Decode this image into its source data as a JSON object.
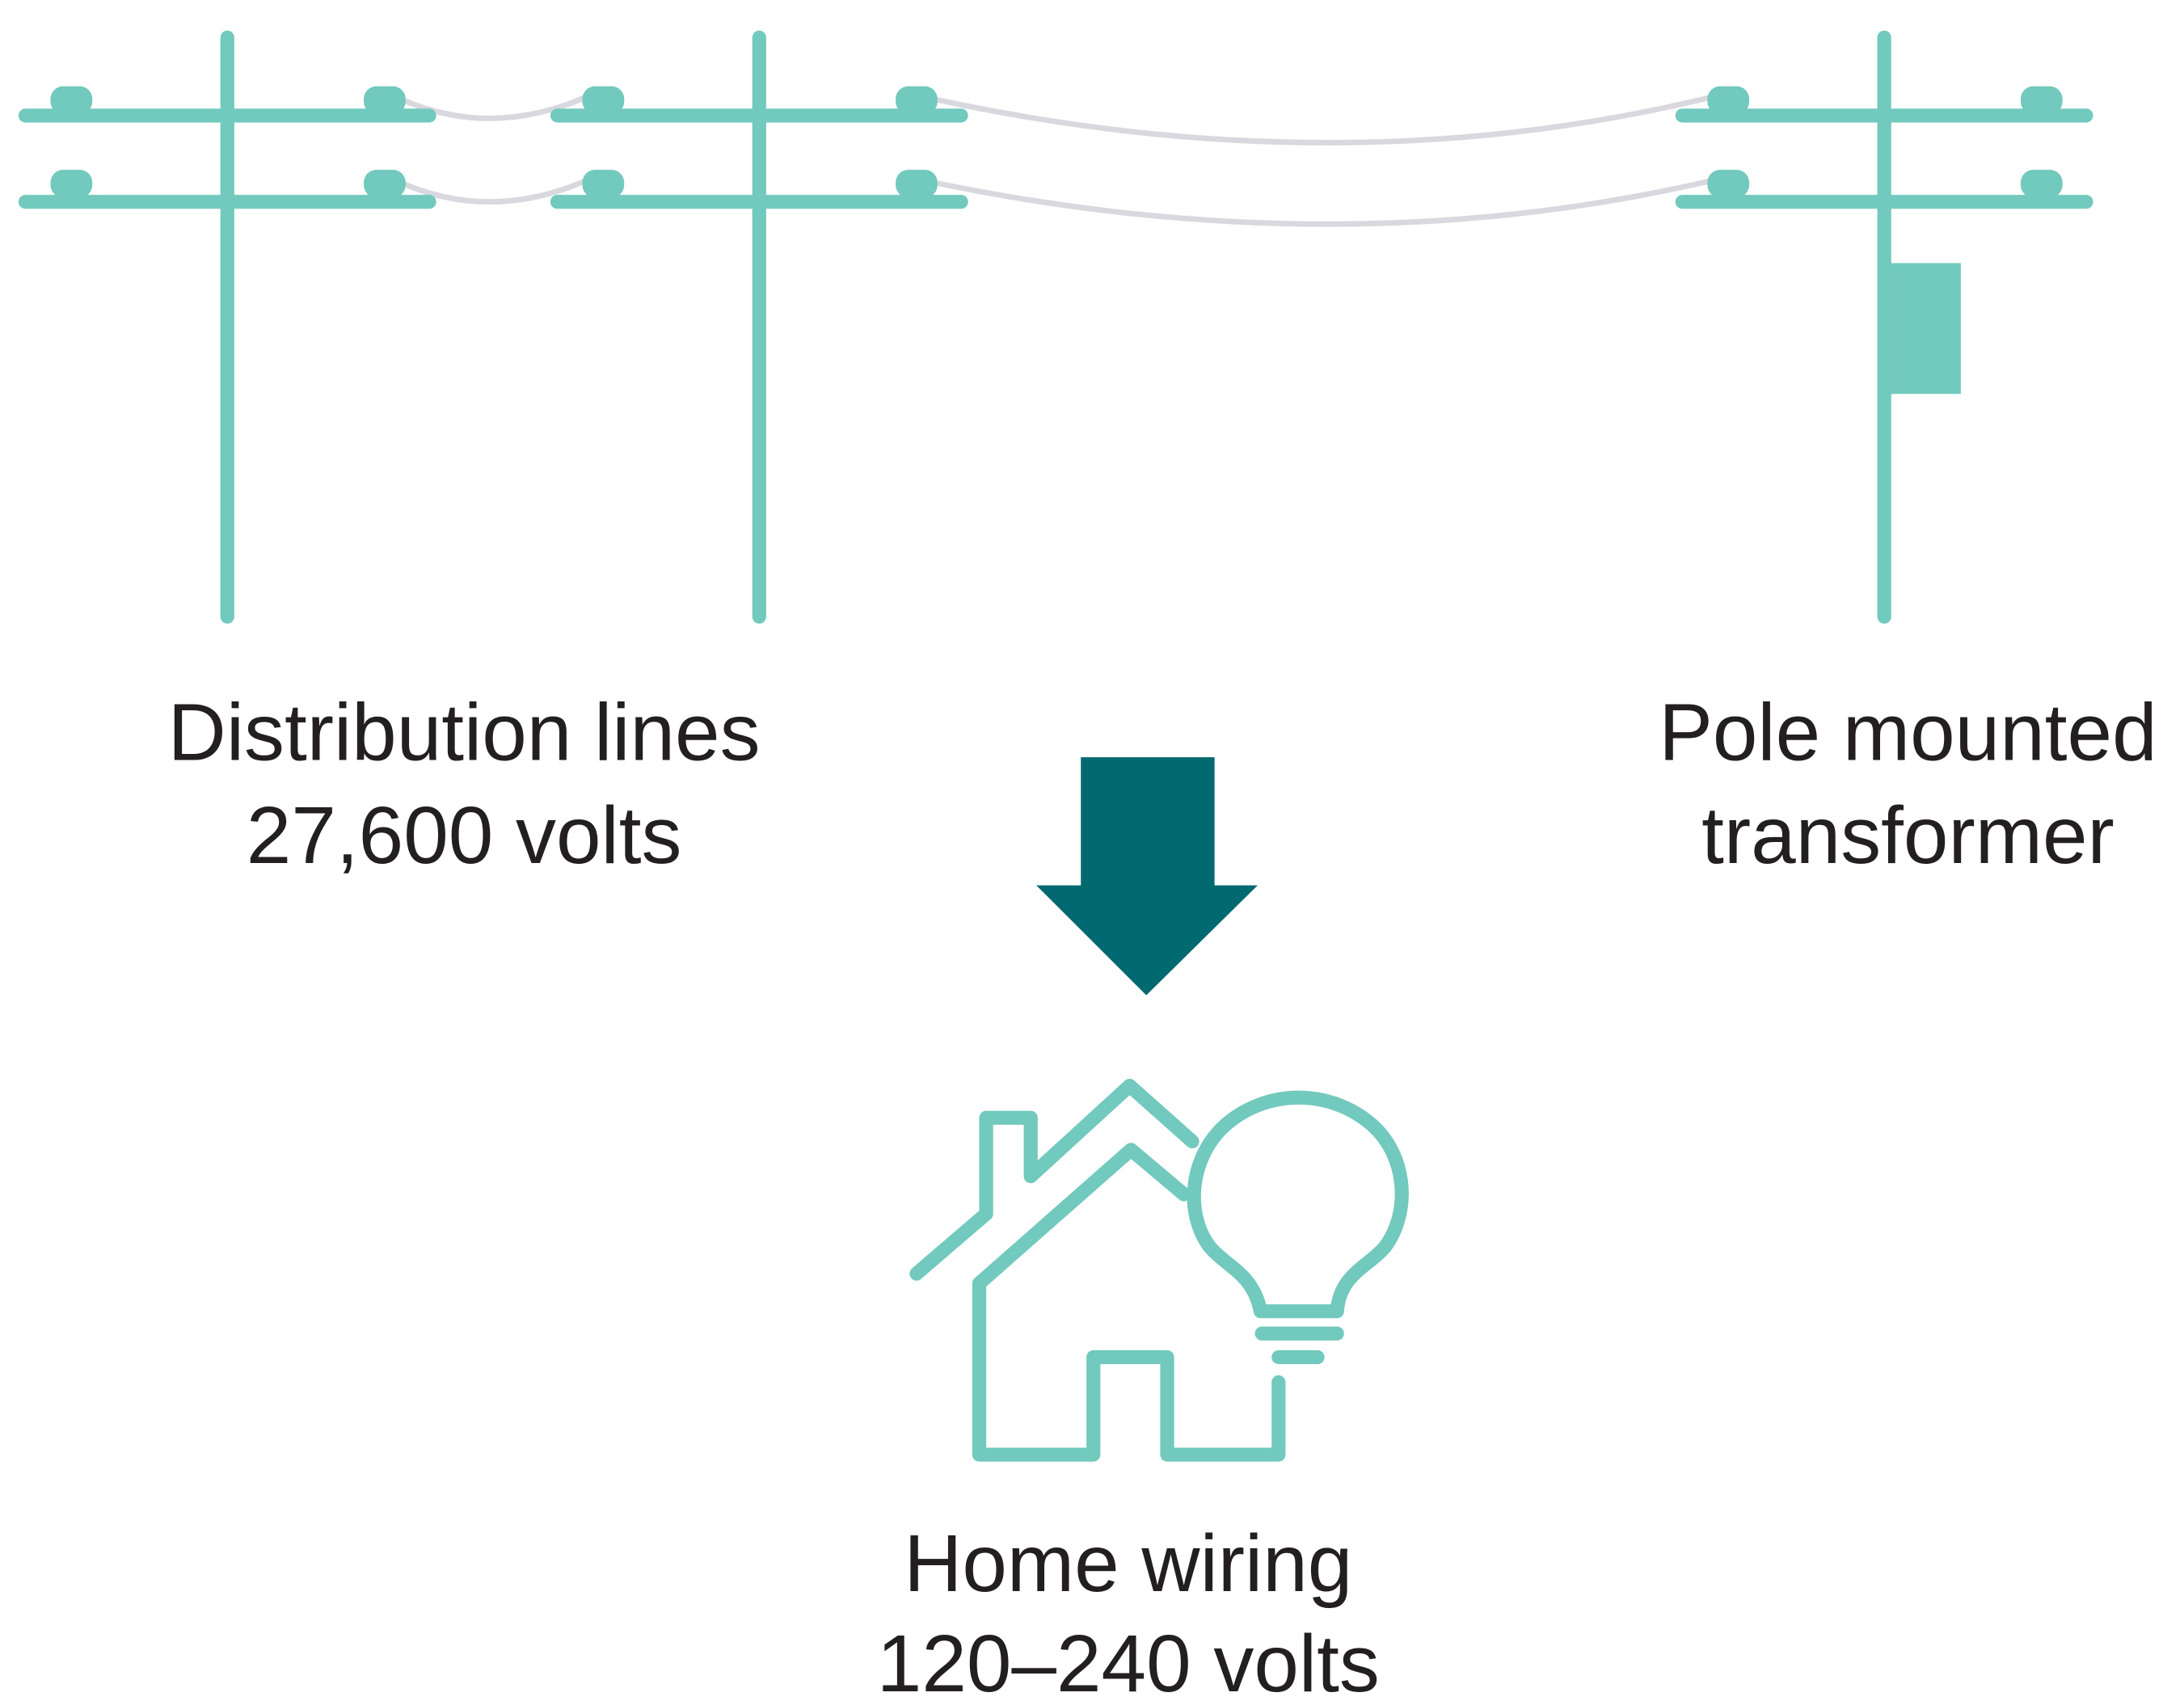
{
  "labels": {
    "distribution": {
      "title": "Distribution lines",
      "voltage": "27,600 volts"
    },
    "transformer": {
      "line1": "Pole mounted",
      "line2": "transformer"
    },
    "home": {
      "title": "Home wiring",
      "voltage": "120–240 volts"
    }
  }
}
